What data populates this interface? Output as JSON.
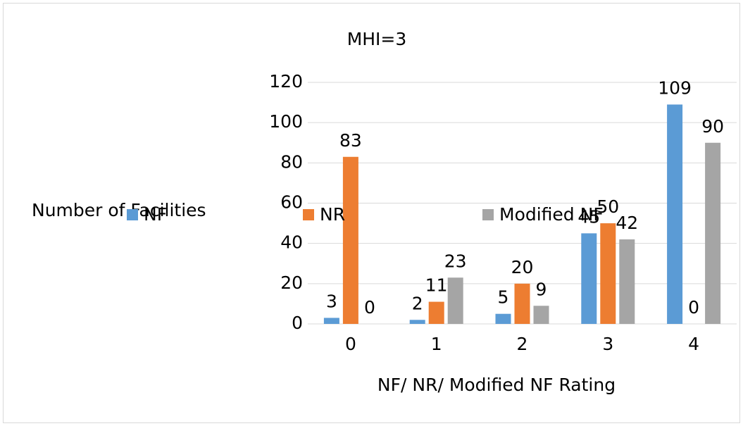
{
  "chart_data": {
    "type": "bar",
    "title": "MHI=3",
    "x_label": "NF/ NR/ Modified NF Rating",
    "y_label": "Number of Facilities",
    "categories": [
      "0",
      "1",
      "2",
      "3",
      "4"
    ],
    "series": [
      {
        "name": "NF",
        "color": "#5b9bd5",
        "values": [
          3,
          2,
          5,
          45,
          109
        ]
      },
      {
        "name": "NR",
        "color": "#ed7d31",
        "values": [
          83,
          11,
          20,
          50,
          0
        ]
      },
      {
        "name": "Modified NF",
        "color": "#a5a5a5",
        "values": [
          0,
          23,
          9,
          42,
          90
        ]
      }
    ],
    "ylim": [
      0,
      120
    ],
    "yticks": [
      0,
      20,
      40,
      60,
      80,
      100,
      120
    ],
    "grid": true
  }
}
